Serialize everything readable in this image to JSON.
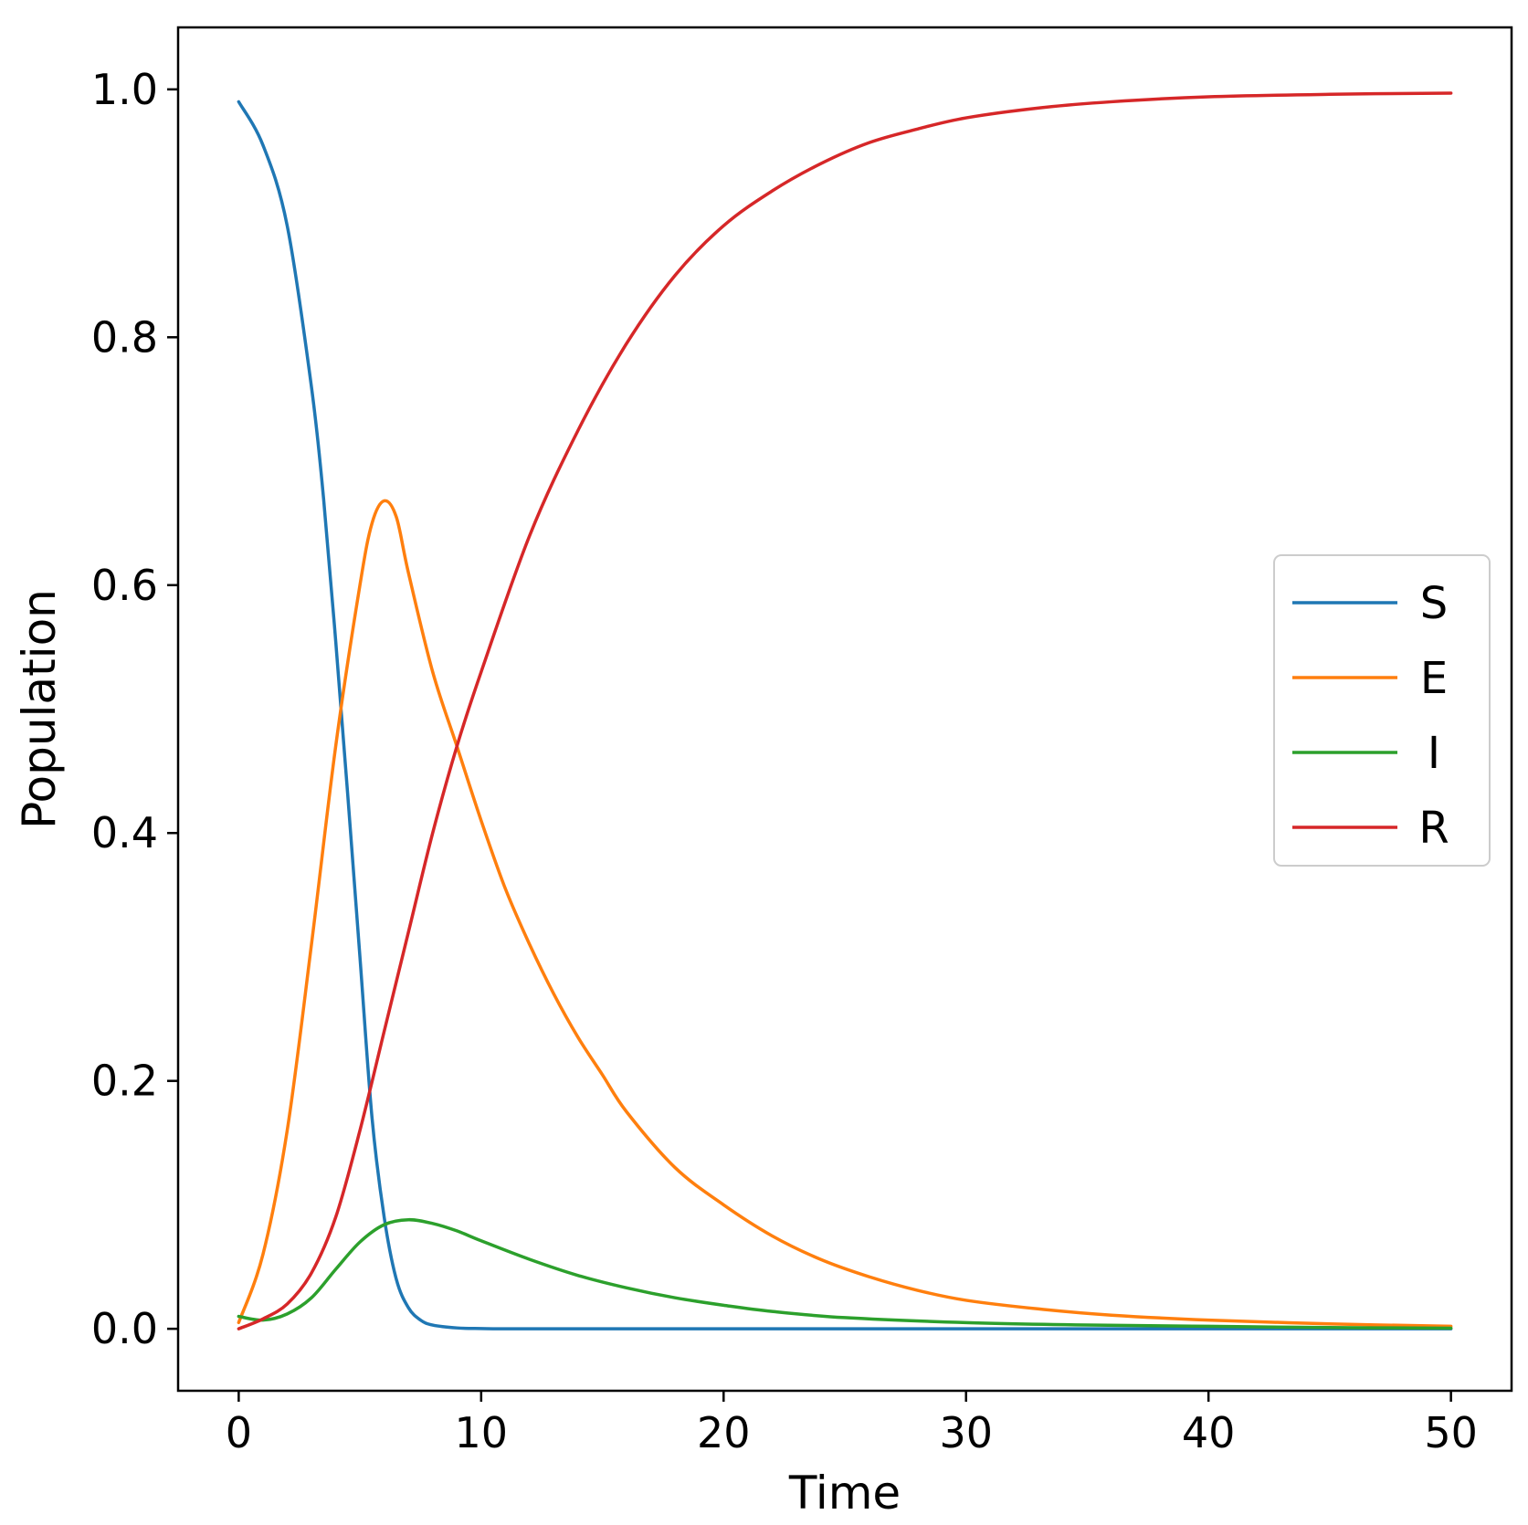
{
  "chart_data": {
    "type": "line",
    "title": "",
    "xlabel": "Time",
    "ylabel": "Population",
    "xlim": [
      -2.5,
      52.5
    ],
    "ylim": [
      -0.05,
      1.05
    ],
    "xticks": [
      0,
      10,
      20,
      30,
      40,
      50
    ],
    "xtick_labels": [
      "0",
      "10",
      "20",
      "30",
      "40",
      "50"
    ],
    "yticks": [
      0.0,
      0.2,
      0.4,
      0.6,
      0.8,
      1.0
    ],
    "ytick_labels": [
      "0.0",
      "0.2",
      "0.4",
      "0.6",
      "0.8",
      "1.0"
    ],
    "grid": false,
    "legend_position": "center-right",
    "series": [
      {
        "name": "S",
        "color": "#1f77b4",
        "points": [
          [
            0,
            0.99
          ],
          [
            1,
            0.955
          ],
          [
            2,
            0.89
          ],
          [
            3,
            0.76
          ],
          [
            3.5,
            0.67
          ],
          [
            4,
            0.555
          ],
          [
            4.5,
            0.43
          ],
          [
            5,
            0.3
          ],
          [
            5.5,
            0.17
          ],
          [
            6,
            0.09
          ],
          [
            6.5,
            0.04
          ],
          [
            7,
            0.017
          ],
          [
            7.5,
            0.007
          ],
          [
            8,
            0.003
          ],
          [
            9,
            0.0007
          ],
          [
            10,
            0.0002
          ],
          [
            12,
            0
          ],
          [
            20,
            0
          ],
          [
            30,
            0
          ],
          [
            40,
            0
          ],
          [
            50,
            0
          ]
        ]
      },
      {
        "name": "E",
        "color": "#ff7f0e",
        "points": [
          [
            0,
            0.005
          ],
          [
            1,
            0.06
          ],
          [
            2,
            0.16
          ],
          [
            3,
            0.31
          ],
          [
            4,
            0.47
          ],
          [
            5,
            0.6
          ],
          [
            5.5,
            0.65
          ],
          [
            6,
            0.668
          ],
          [
            6.5,
            0.655
          ],
          [
            7,
            0.61
          ],
          [
            8,
            0.53
          ],
          [
            9,
            0.47
          ],
          [
            10,
            0.41
          ],
          [
            11,
            0.355
          ],
          [
            12,
            0.31
          ],
          [
            13,
            0.27
          ],
          [
            14,
            0.235
          ],
          [
            15,
            0.205
          ],
          [
            16,
            0.175
          ],
          [
            18,
            0.13
          ],
          [
            20,
            0.1
          ],
          [
            22,
            0.075
          ],
          [
            24,
            0.056
          ],
          [
            26,
            0.042
          ],
          [
            28,
            0.031
          ],
          [
            30,
            0.023
          ],
          [
            33,
            0.016
          ],
          [
            36,
            0.011
          ],
          [
            40,
            0.007
          ],
          [
            45,
            0.004
          ],
          [
            50,
            0.002
          ]
        ]
      },
      {
        "name": "I",
        "color": "#2ca02c",
        "points": [
          [
            0,
            0.01
          ],
          [
            1,
            0.007
          ],
          [
            2,
            0.012
          ],
          [
            3,
            0.025
          ],
          [
            4,
            0.048
          ],
          [
            5,
            0.07
          ],
          [
            6,
            0.084
          ],
          [
            7,
            0.088
          ],
          [
            8,
            0.085
          ],
          [
            9,
            0.079
          ],
          [
            10,
            0.071
          ],
          [
            12,
            0.056
          ],
          [
            14,
            0.043
          ],
          [
            16,
            0.033
          ],
          [
            18,
            0.025
          ],
          [
            20,
            0.019
          ],
          [
            22,
            0.014
          ],
          [
            25,
            0.009
          ],
          [
            30,
            0.005
          ],
          [
            35,
            0.003
          ],
          [
            40,
            0.002
          ],
          [
            45,
            0.001
          ],
          [
            50,
            0.0005
          ]
        ]
      },
      {
        "name": "R",
        "color": "#d62728",
        "points": [
          [
            0,
            0
          ],
          [
            1,
            0.008
          ],
          [
            2,
            0.02
          ],
          [
            3,
            0.045
          ],
          [
            4,
            0.09
          ],
          [
            5,
            0.16
          ],
          [
            6,
            0.24
          ],
          [
            7,
            0.32
          ],
          [
            8,
            0.4
          ],
          [
            9,
            0.47
          ],
          [
            10,
            0.53
          ],
          [
            12,
            0.64
          ],
          [
            14,
            0.725
          ],
          [
            16,
            0.795
          ],
          [
            18,
            0.85
          ],
          [
            20,
            0.89
          ],
          [
            22,
            0.918
          ],
          [
            24,
            0.94
          ],
          [
            26,
            0.957
          ],
          [
            28,
            0.968
          ],
          [
            30,
            0.977
          ],
          [
            33,
            0.985
          ],
          [
            36,
            0.99
          ],
          [
            40,
            0.994
          ],
          [
            45,
            0.996
          ],
          [
            50,
            0.997
          ]
        ]
      }
    ]
  }
}
